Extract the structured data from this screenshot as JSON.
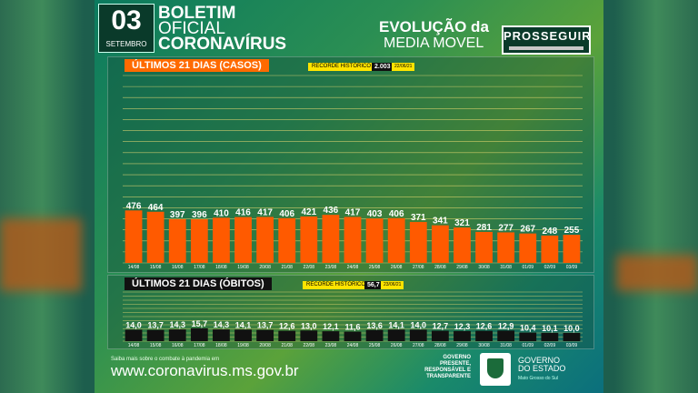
{
  "header": {
    "day": "03",
    "month": "SETEMBRO",
    "line1": "BOLETIM",
    "line2": "OFICIAL",
    "line3": "CORONAVÍRUS",
    "evo1": "EVOLUÇÃO da",
    "evo2": "MEDIA MOVEL",
    "prosseguir": "PROSSEGUIR"
  },
  "chart_data": [
    {
      "type": "bar",
      "title": "ÚLTIMOS 21 DIAS (CASOS)",
      "record_label": "RECORDE HISTÓRICO",
      "record_value": "2.003",
      "record_date": "22/06/21",
      "categories": [
        "14/08",
        "15/08",
        "16/08",
        "17/08",
        "18/08",
        "19/08",
        "20/08",
        "21/08",
        "22/08",
        "23/08",
        "24/08",
        "25/08",
        "26/08",
        "27/08",
        "28/08",
        "29/08",
        "30/08",
        "31/08",
        "01/09",
        "02/09",
        "03/09"
      ],
      "values": [
        476,
        464,
        397,
        396,
        410,
        416,
        417,
        406,
        421,
        436,
        417,
        403,
        406,
        371,
        341,
        321,
        281,
        277,
        267,
        248,
        255
      ],
      "value_labels": [
        "476",
        "464",
        "397",
        "396",
        "410",
        "416",
        "417",
        "406",
        "421",
        "436",
        "417",
        "403",
        "406",
        "371",
        "341",
        "321",
        "281",
        "277",
        "267",
        "248",
        "255"
      ],
      "ylim": [
        0,
        1700
      ],
      "color": "#ff5a00"
    },
    {
      "type": "bar",
      "title": "ÚLTIMOS 21 DIAS (ÓBITOS)",
      "record_label": "RECORDE HISTÓRICO",
      "record_value": "56,7",
      "record_date": "23/06/21",
      "categories": [
        "14/08",
        "15/08",
        "16/08",
        "17/08",
        "18/08",
        "19/08",
        "20/08",
        "21/08",
        "22/08",
        "23/08",
        "24/08",
        "25/08",
        "26/08",
        "27/08",
        "28/08",
        "29/08",
        "30/08",
        "31/08",
        "01/09",
        "02/09",
        "03/09"
      ],
      "values": [
        14.0,
        13.7,
        14.3,
        15.7,
        14.3,
        14.1,
        13.7,
        12.6,
        13.0,
        12.1,
        11.6,
        13.6,
        14.1,
        14.0,
        12.7,
        12.3,
        12.6,
        12.9,
        10.4,
        10.1,
        10.0
      ],
      "value_labels": [
        "14,0",
        "13,7",
        "14,3",
        "15,7",
        "14,3",
        "14,1",
        "13,7",
        "12,6",
        "13,0",
        "12,1",
        "11,6",
        "13,6",
        "14,1",
        "14,0",
        "12,7",
        "12,3",
        "12,6",
        "12,9",
        "10,4",
        "10,1",
        "10,0"
      ],
      "ylim": [
        0,
        60
      ],
      "color": "#111111"
    }
  ],
  "footer": {
    "small": "Saiba mais sobre o combate à pandemia em",
    "url": "www.coronavirus.ms.gov.br",
    "gov1": "GOVERNO",
    "gov2": "PRESENTE,",
    "gov3": "RESPONSÁVEL E",
    "gov4": "TRANSPARENTE",
    "ge1": "GOVERNO",
    "ge2": "DO ESTADO",
    "ge3": "Mato Grosso do Sul"
  }
}
